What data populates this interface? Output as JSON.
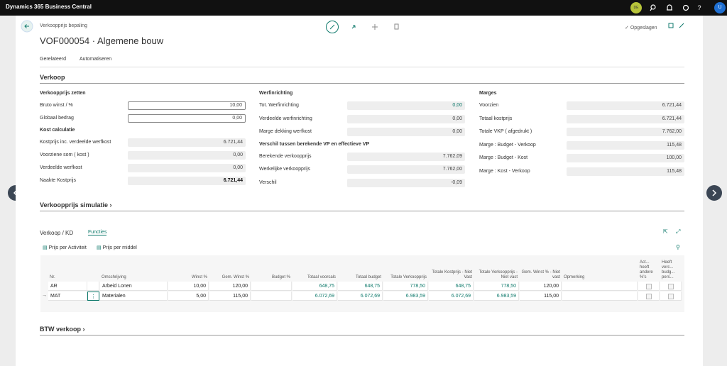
{
  "topbar": {
    "app": "Dynamics 365 Business Central",
    "company_badge": "DE",
    "user": "U"
  },
  "header": {
    "breadcrumb": "Verkoopprijs bepaling",
    "title": "VOF000054 · Algemene bouw",
    "status": "Opgeslagen"
  },
  "actions": [
    "Gerelateerd",
    "Automatiseren"
  ],
  "verkoop": {
    "title": "Verkoop",
    "columns": [
      {
        "groups": [
          {
            "heading": "Verkoopprijs zetten",
            "fields": [
              {
                "label": "Bruto winst / %",
                "value": "10,00",
                "editable": true
              },
              {
                "label": "Globaal bedrag",
                "value": "0,00",
                "editable": true
              }
            ]
          },
          {
            "heading": "Kost calculatie",
            "fields": [
              {
                "label": "Kostprijs inc. verdeelde werfkost",
                "value": "6.721,44"
              },
              {
                "label": "Voorziene som ( kost )",
                "value": "0,00"
              },
              {
                "label": "Verdeelde werfkost",
                "value": "0,00"
              },
              {
                "label": "Naakte Kostprijs",
                "value": "6.721,44",
                "bold": true
              }
            ]
          }
        ]
      },
      {
        "groups": [
          {
            "heading": "Werfinrichting",
            "fields": [
              {
                "label": "Tot. Werfinrichting",
                "value": "0,00",
                "link": true
              },
              {
                "label": "Verdeelde werfinrichting",
                "value": "0,00"
              },
              {
                "label": "Marge dekking werfkost",
                "value": "0,00"
              }
            ]
          },
          {
            "heading": "Verschil tussen berekende VP en effectieve VP",
            "fields": [
              {
                "label": "Berekende verkoopprijs",
                "value": "7.762,09"
              },
              {
                "label": "Werkelijke verkoopprijs",
                "value": "7.762,00"
              },
              {
                "label": "Verschil",
                "value": "-0,09"
              }
            ]
          }
        ]
      },
      {
        "groups": [
          {
            "heading": "Marges",
            "fields": [
              {
                "label": "Voorzien",
                "value": "6.721,44"
              },
              {
                "label": "Totaal kostprijs",
                "value": "6.721,44"
              },
              {
                "label": "Totale VKP ( afgedrukt )",
                "value": "7.762,00"
              },
              {
                "label": "Marge : Budget - Verkoop",
                "value": "115,48"
              },
              {
                "label": "Marge : Budget - Kost",
                "value": "100,00"
              },
              {
                "label": "Marge : Kost - Verkoop",
                "value": "115,48"
              }
            ]
          }
        ]
      }
    ]
  },
  "simulatie": {
    "title": "Verkoopprijs simulatie"
  },
  "subpage": {
    "title": "Verkoop / KD",
    "tab": "Functies",
    "actions": [
      "Prijs per Activiteit",
      "Prijs per middel"
    ],
    "columns": [
      "Nr.",
      "Omschrijving",
      "Winst %",
      "Gem. Winst %",
      "Budget %",
      "Totaal voorcalc",
      "Totaal budget",
      "Totale Verkoopprijs",
      "Totale Kostprijs - Niet Vast",
      "Totale Verkoopprijs - Niet vast",
      "Gem. Winst % - Niet vast",
      "Opmerking",
      "Act... heeft andere %'s",
      "Heeft verc... budg... pers..."
    ],
    "rows": [
      {
        "nr": "AR",
        "description": "Arbeid Lonen",
        "winst": "10,00",
        "gem_winst": "120,00",
        "voorcalc": "648,75",
        "budget": "648,75",
        "verkoopprijs": "778,50",
        "kost_niet_vast": "648,75",
        "vp_niet_vast": "778,50",
        "gem_winst_niet_vast": "120,00"
      },
      {
        "nr": "MAT",
        "description": "Materialen",
        "winst": "5,00",
        "gem_winst": "115,00",
        "voorcalc": "6.072,69",
        "budget": "6.072,69",
        "verkoopprijs": "6.983,59",
        "kost_niet_vast": "6.072,69",
        "vp_niet_vast": "6.983,59",
        "gem_winst_niet_vast": "115,00",
        "selected": true
      }
    ]
  },
  "btw": {
    "title": "BTW verkoop"
  }
}
